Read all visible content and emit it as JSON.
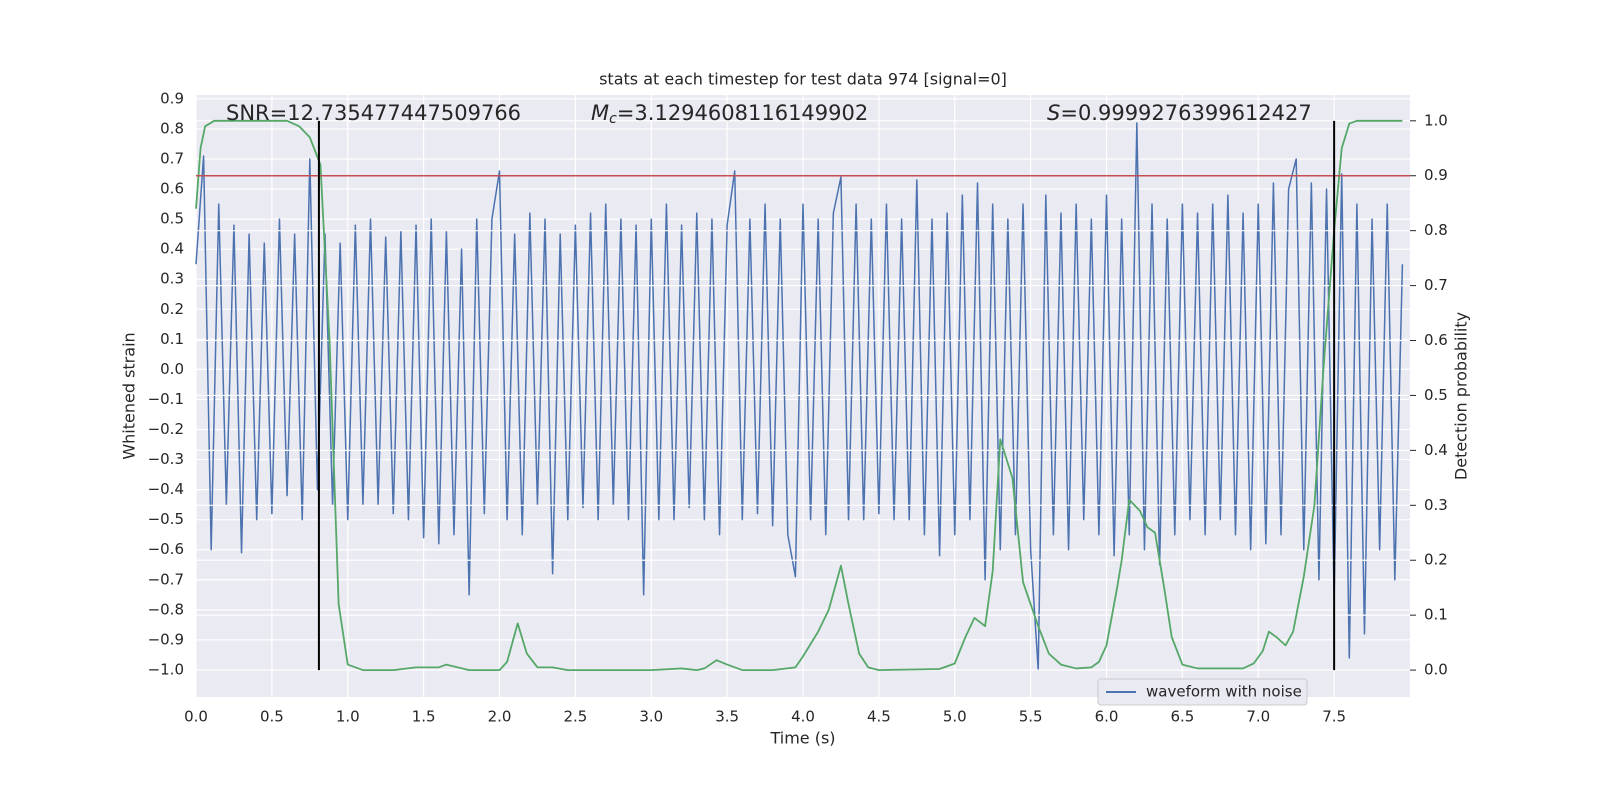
{
  "chart_data": {
    "type": "line",
    "title": "stats at each timestep for test data 974 [signal=0]",
    "xlabel": "Time (s)",
    "ylabel": "Whitened strain",
    "y2label": "Detection probability",
    "annotations": [
      {
        "parts": [
          {
            "text": "SNR=12.735477447509766"
          }
        ]
      },
      {
        "parts": [
          {
            "text": "M",
            "italic": true
          },
          {
            "text": "c",
            "italic": true,
            "sub": true
          },
          {
            "text": "=3.1294608116149902"
          }
        ]
      },
      {
        "parts": [
          {
            "text": "S",
            "italic": true
          },
          {
            "text": "=0.9999276399612427"
          }
        ]
      }
    ],
    "xlim": [
      0,
      8.0
    ],
    "ylim": [
      -1.09,
      0.913
    ],
    "y2lim": [
      -0.049,
      1.047
    ],
    "xticks": [
      {
        "value": 0,
        "label": "0.0"
      },
      0.5,
      {
        "value": 1,
        "label": "1.0"
      },
      1.5,
      {
        "value": 2,
        "label": "2.0"
      },
      2.5,
      {
        "value": 3,
        "label": "3.0"
      },
      3.5,
      {
        "value": 4,
        "label": "4.0"
      },
      4.5,
      {
        "value": 5,
        "label": "5.0"
      },
      5.5,
      {
        "value": 6,
        "label": "6.0"
      },
      6.5,
      {
        "value": 7,
        "label": "7.0"
      },
      7.5
    ],
    "yticks": [
      {
        "value": -1,
        "label": "−1.0"
      },
      {
        "value": -0.9,
        "label": "−0.9"
      },
      {
        "value": -0.8,
        "label": "−0.8"
      },
      {
        "value": -0.7,
        "label": "−0.7"
      },
      {
        "value": -0.6,
        "label": "−0.6"
      },
      {
        "value": -0.5,
        "label": "−0.5"
      },
      {
        "value": -0.4,
        "label": "−0.4"
      },
      {
        "value": -0.3,
        "label": "−0.3"
      },
      {
        "value": -0.2,
        "label": "−0.2"
      },
      {
        "value": -0.1,
        "label": "−0.1"
      },
      {
        "value": 0,
        "label": "0.0"
      },
      0.1,
      0.2,
      0.3,
      0.4,
      0.5,
      0.6,
      0.7,
      0.8,
      0.9
    ],
    "y2ticks": [
      {
        "value": 0,
        "label": "0.0"
      },
      0.1,
      0.2,
      0.3,
      0.4,
      0.5,
      0.6,
      0.7,
      0.8,
      0.9,
      {
        "value": 1,
        "label": "1.0"
      }
    ],
    "grid": true,
    "legend": "lower right",
    "series": [
      {
        "name": "waveform with noise",
        "color": "#4c72b0",
        "x": [
          0,
          0.05,
          0.1,
          0.15,
          0.2,
          0.25,
          0.3,
          0.35,
          0.4,
          0.45,
          0.5,
          0.55,
          0.6,
          0.65,
          0.7,
          0.75,
          0.8,
          0.85,
          0.9,
          0.95,
          1,
          1.05,
          1.1,
          1.15,
          1.2,
          1.25,
          1.3,
          1.35,
          1.4,
          1.45,
          1.5,
          1.55,
          1.6,
          1.65,
          1.7,
          1.75,
          1.8,
          1.85,
          1.9,
          1.95,
          2,
          2.05,
          2.1,
          2.15,
          2.2,
          2.25,
          2.3,
          2.35,
          2.4,
          2.45,
          2.5,
          2.55,
          2.6,
          2.65,
          2.7,
          2.75,
          2.8,
          2.85,
          2.9,
          2.95,
          3,
          3.05,
          3.1,
          3.15,
          3.2,
          3.25,
          3.3,
          3.35,
          3.4,
          3.45,
          3.5,
          3.55,
          3.6,
          3.65,
          3.7,
          3.75,
          3.8,
          3.85,
          3.9,
          3.95,
          4,
          4.05,
          4.1,
          4.15,
          4.2,
          4.25,
          4.3,
          4.35,
          4.4,
          4.45,
          4.5,
          4.55,
          4.6,
          4.65,
          4.7,
          4.75,
          4.8,
          4.85,
          4.9,
          4.95,
          5,
          5.05,
          5.1,
          5.15,
          5.2,
          5.25,
          5.3,
          5.35,
          5.4,
          5.45,
          5.5,
          5.55,
          5.6,
          5.65,
          5.7,
          5.75,
          5.8,
          5.85,
          5.9,
          5.95,
          6,
          6.05,
          6.1,
          6.15,
          6.2,
          6.25,
          6.3,
          6.35,
          6.4,
          6.45,
          6.5,
          6.55,
          6.6,
          6.65,
          6.7,
          6.75,
          6.8,
          6.85,
          6.9,
          6.95,
          7,
          7.05,
          7.1,
          7.15,
          7.2,
          7.25,
          7.3,
          7.35,
          7.4,
          7.45,
          7.5,
          7.55,
          7.6,
          7.65,
          7.7,
          7.75,
          7.8,
          7.85,
          7.9,
          7.95
        ],
        "values": [
          0.35,
          0.71,
          -0.6,
          0.55,
          -0.45,
          0.48,
          -0.61,
          0.45,
          -0.5,
          0.42,
          -0.48,
          0.5,
          -0.42,
          0.45,
          -0.5,
          0.7,
          -0.4,
          0.45,
          -0.45,
          0.42,
          -0.5,
          0.48,
          -0.45,
          0.5,
          -0.45,
          0.44,
          -0.48,
          0.46,
          -0.5,
          0.48,
          -0.56,
          0.5,
          -0.58,
          0.46,
          -0.55,
          0.4,
          -0.75,
          0.5,
          -0.48,
          0.5,
          0.66,
          -0.5,
          0.45,
          -0.55,
          0.52,
          -0.45,
          0.5,
          -0.68,
          0.45,
          -0.5,
          0.48,
          -0.46,
          0.52,
          -0.5,
          0.55,
          -0.45,
          0.5,
          -0.5,
          0.48,
          -0.75,
          0.5,
          -0.5,
          0.55,
          -0.5,
          0.48,
          -0.46,
          0.52,
          -0.5,
          0.5,
          -0.55,
          0.48,
          0.66,
          -0.5,
          0.5,
          -0.48,
          0.55,
          -0.52,
          0.5,
          -0.55,
          -0.69,
          0.55,
          -0.5,
          0.5,
          -0.55,
          0.52,
          0.64,
          -0.5,
          0.55,
          -0.5,
          0.5,
          -0.48,
          0.55,
          -0.5,
          0.5,
          -0.5,
          0.63,
          -0.55,
          0.5,
          -0.62,
          0.52,
          -0.55,
          0.58,
          -0.5,
          0.62,
          -0.7,
          0.55,
          -0.6,
          0.5,
          -0.55,
          0.55,
          -0.6,
          -1.0,
          0.58,
          -0.55,
          0.52,
          -0.6,
          0.55,
          -0.5,
          0.5,
          -0.55,
          0.58,
          -0.62,
          0.5,
          -0.55,
          0.82,
          -0.6,
          0.55,
          -0.65,
          0.5,
          -0.55,
          0.55,
          -0.5,
          0.52,
          -0.55,
          0.55,
          -0.5,
          0.58,
          -0.55,
          0.52,
          -0.6,
          0.55,
          -0.58,
          0.62,
          -0.55,
          0.6,
          0.7,
          -0.6,
          0.62,
          -0.7,
          0.6,
          -0.76,
          0.65,
          -0.96,
          0.55,
          -0.88,
          0.5,
          -0.6,
          0.55,
          -0.7,
          0.35
        ]
      },
      {
        "color": "#55a868",
        "axis": "y2",
        "x": [
          0,
          0.03,
          0.06,
          0.12,
          0.6,
          0.68,
          0.75,
          0.82,
          0.88,
          0.94,
          1.0,
          1.1,
          1.3,
          1.45,
          1.6,
          1.65,
          1.8,
          2.0,
          2.05,
          2.12,
          2.18,
          2.25,
          2.35,
          2.45,
          3.0,
          3.2,
          3.3,
          3.35,
          3.43,
          3.5,
          3.6,
          3.8,
          3.95,
          4.0,
          4.1,
          4.17,
          4.25,
          4.3,
          4.37,
          4.43,
          4.5,
          4.9,
          5.0,
          5.07,
          5.13,
          5.2,
          5.25,
          5.3,
          5.38,
          5.45,
          5.5,
          5.55,
          5.62,
          5.7,
          5.8,
          5.9,
          5.95,
          6.0,
          6.07,
          6.1,
          6.15,
          6.22,
          6.27,
          6.32,
          6.38,
          6.43,
          6.5,
          6.6,
          6.9,
          6.97,
          7.03,
          7.07,
          7.12,
          7.18,
          7.23,
          7.3,
          7.37,
          7.43,
          7.5,
          7.55,
          7.6,
          7.65,
          7.95
        ],
        "values": [
          0.84,
          0.95,
          0.99,
          1.0,
          1.0,
          0.99,
          0.97,
          0.92,
          0.6,
          0.12,
          0.01,
          0.0,
          0.0,
          0.005,
          0.005,
          0.01,
          0.0,
          0.0,
          0.015,
          0.085,
          0.03,
          0.005,
          0.005,
          0.0,
          0.0,
          0.003,
          0.0,
          0.003,
          0.018,
          0.01,
          0.0,
          0.0,
          0.005,
          0.025,
          0.07,
          0.11,
          0.19,
          0.12,
          0.03,
          0.005,
          0.0,
          0.002,
          0.012,
          0.06,
          0.095,
          0.08,
          0.18,
          0.42,
          0.35,
          0.16,
          0.12,
          0.08,
          0.03,
          0.01,
          0.003,
          0.005,
          0.015,
          0.045,
          0.15,
          0.2,
          0.31,
          0.29,
          0.26,
          0.25,
          0.15,
          0.06,
          0.01,
          0.003,
          0.003,
          0.012,
          0.035,
          0.07,
          0.06,
          0.045,
          0.07,
          0.17,
          0.3,
          0.55,
          0.8,
          0.95,
          0.995,
          1.0,
          1.0
        ]
      }
    ],
    "hlines": [
      {
        "value": 0.9,
        "axis": "y2",
        "color": "#c44e52"
      }
    ],
    "vlines": {
      "x": [
        0.81,
        7.5
      ],
      "color": "#000000"
    }
  }
}
